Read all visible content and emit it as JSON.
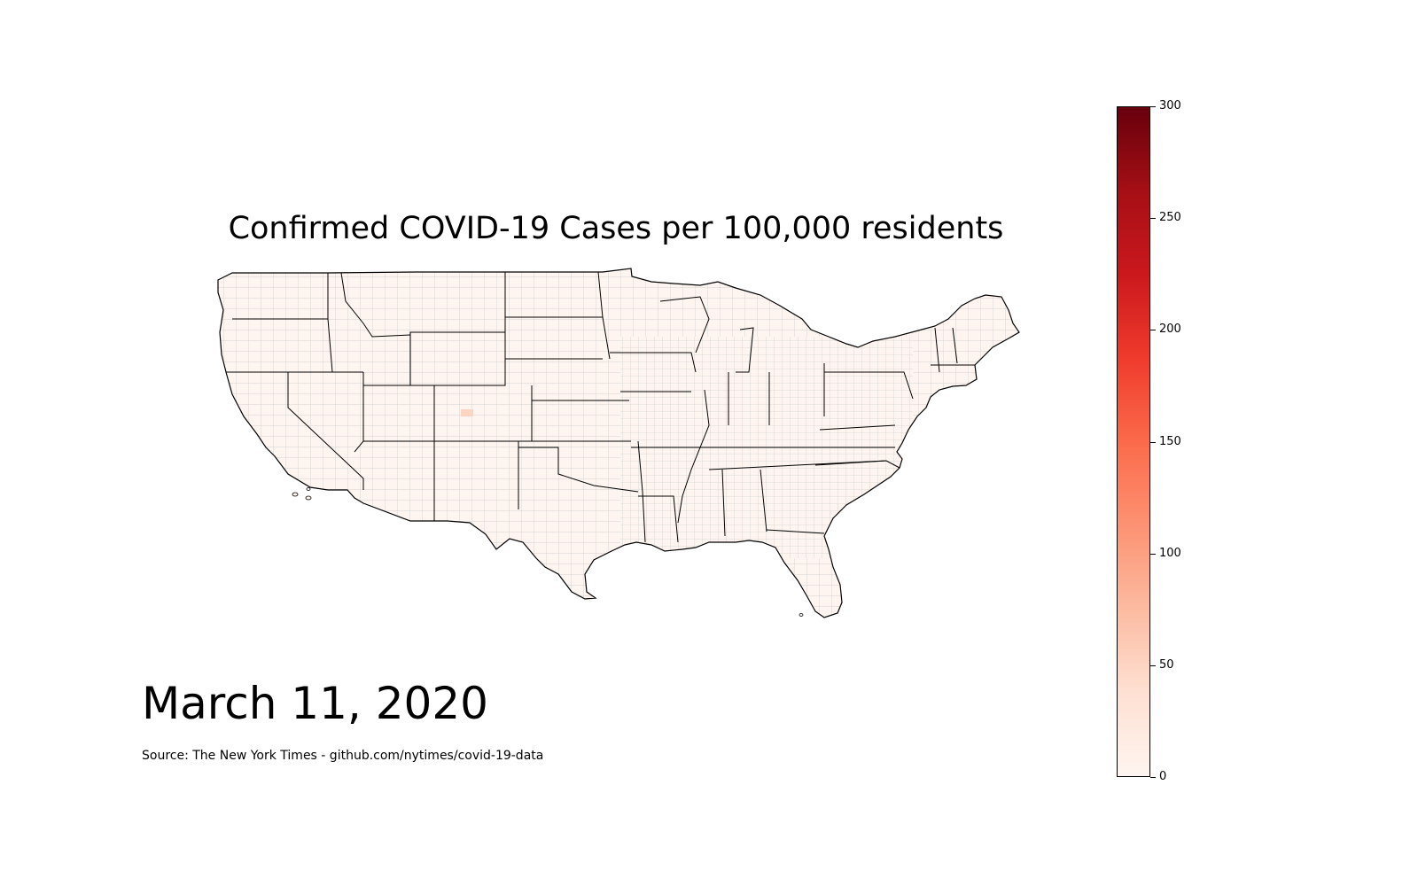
{
  "title": "Confirmed COVID-19 Cases per 100,000 residents",
  "date": "March 11, 2020",
  "source": "Source: The New York Times - github.com/nytimes/covid-19-data",
  "colors": {
    "county_fill": "#fff5f0",
    "county_stroke": "#d3d3d3",
    "state_stroke": "#000000",
    "colormap": [
      "#fff5f0",
      "#fee0d2",
      "#fcbba1",
      "#fc9272",
      "#fb6a4a",
      "#ef3b2c",
      "#cb181d",
      "#a50f15",
      "#67000d"
    ]
  },
  "colorbar": {
    "min": 0,
    "max": 300,
    "ticks": [
      "0",
      "50",
      "100",
      "150",
      "200",
      "250",
      "300"
    ]
  }
}
